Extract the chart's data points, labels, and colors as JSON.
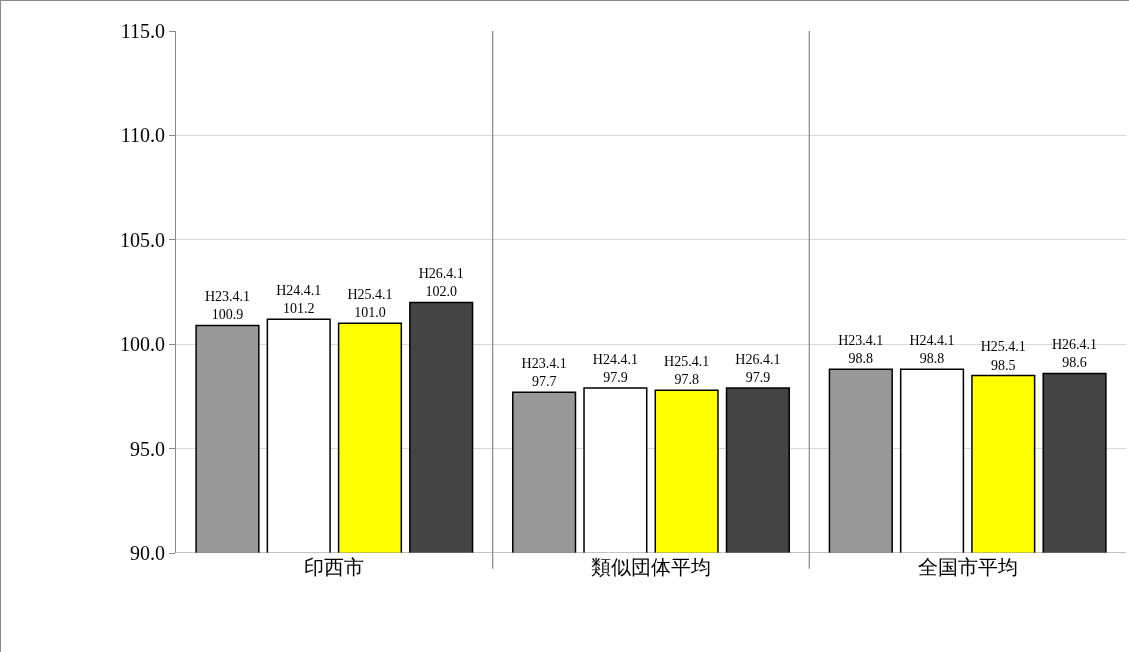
{
  "chart_data": {
    "type": "bar",
    "categories": [
      "印西市",
      "類似団体平均",
      "全国市平均"
    ],
    "series": [
      {
        "name": "H23.4.1",
        "color": "#999999",
        "values": [
          100.9,
          97.7,
          98.8
        ],
        "value_labels": [
          "100.9",
          "97.7",
          "98.8"
        ]
      },
      {
        "name": "H24.4.1",
        "color": "#ffffff",
        "values": [
          101.2,
          97.9,
          98.8
        ],
        "value_labels": [
          "101.2",
          "97.9",
          "98.8"
        ]
      },
      {
        "name": "H25.4.1",
        "color": "#ffff00",
        "values": [
          101.0,
          97.8,
          98.5
        ],
        "value_labels": [
          "101.0",
          "97.8",
          "98.5"
        ]
      },
      {
        "name": "H26.4.1",
        "color": "#444444",
        "values": [
          102.0,
          97.9,
          98.6
        ],
        "value_labels": [
          "102.0",
          "97.9",
          "98.6"
        ]
      }
    ],
    "ylim": [
      90,
      115
    ],
    "yticks": [
      {
        "value": 90,
        "label": "90.0"
      },
      {
        "value": 95,
        "label": "95.0"
      },
      {
        "value": 100,
        "label": "100.0"
      },
      {
        "value": 105,
        "label": "105.0"
      },
      {
        "value": 110,
        "label": "110.0"
      },
      {
        "value": 115,
        "label": "115.0"
      }
    ],
    "grid": true,
    "legend": false
  }
}
